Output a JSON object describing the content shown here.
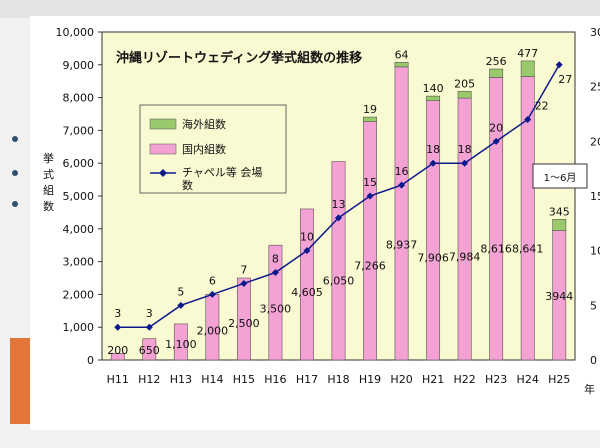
{
  "chart_data": {
    "type": "bar",
    "title": "沖縄リゾートウェディング挙式組数の推移",
    "ylabel": "挙式組数",
    "xlabel_unit": "年",
    "categories": [
      "H11",
      "H12",
      "H13",
      "H14",
      "H15",
      "H16",
      "H17",
      "H18",
      "H19",
      "H20",
      "H21",
      "H22",
      "H23",
      "H24",
      "H25"
    ],
    "ylim": [
      0,
      10000
    ],
    "y_ticks": [
      "0",
      "1,000",
      "2,000",
      "3,000",
      "4,000",
      "5,000",
      "6,000",
      "7,000",
      "8,000",
      "9,000",
      "10,000"
    ],
    "y2lim": [
      0,
      30
    ],
    "y2_ticks": [
      "0",
      "5",
      "10",
      "15",
      "20",
      "25",
      "30"
    ],
    "series": [
      {
        "name": "国内組数",
        "type": "bar",
        "color": "#f4a2d3",
        "values": [
          200,
          650,
          1100,
          2000,
          2500,
          3500,
          4605,
          6050,
          7266,
          8937,
          7906,
          7984,
          8616,
          8641,
          3944
        ],
        "labels": [
          "200",
          "650",
          "1,100",
          "2,000",
          "2,500",
          "3,500",
          "4,605",
          "6,050",
          "7,266",
          "8,937",
          "7,906",
          "7,984",
          "8,616",
          "8,641",
          "3944"
        ]
      },
      {
        "name": "海外組数",
        "type": "bar",
        "color": "#99c96a",
        "values": [
          0,
          0,
          0,
          0,
          0,
          0,
          0,
          0,
          19,
          64,
          140,
          205,
          256,
          477,
          345
        ],
        "labels": [
          "",
          "",
          "",
          "",
          "",
          "",
          "",
          "",
          "19",
          "64",
          "140",
          "205",
          "256",
          "477",
          "345"
        ]
      },
      {
        "name": "チャペル等 会場数",
        "type": "line",
        "axis": "right",
        "color": "#0c1a8c",
        "values": [
          3,
          3,
          5,
          6,
          7,
          8,
          10,
          13,
          15,
          16,
          18,
          18,
          20,
          22,
          27
        ],
        "labels": [
          "3",
          "3",
          "5",
          "6",
          "7",
          "8",
          "10",
          "13",
          "15",
          "16",
          "18",
          "18",
          "20",
          "22",
          "27"
        ]
      }
    ],
    "annotation": "1～6月",
    "plot_bg": "#fafad2",
    "grid": false,
    "legend_position": "left"
  }
}
